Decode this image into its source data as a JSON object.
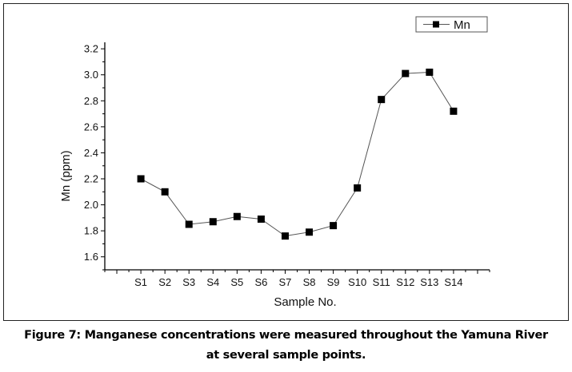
{
  "chart_data": {
    "type": "line",
    "title": "",
    "xlabel": "Sample No.",
    "ylabel": "Mn (ppm)",
    "categories": [
      "S1",
      "S2",
      "S3",
      "S4",
      "S5",
      "S6",
      "S7",
      "S8",
      "S9",
      "S10",
      "S11",
      "S12",
      "S13",
      "S14"
    ],
    "series": [
      {
        "name": "Mn",
        "values": [
          2.2,
          2.1,
          1.85,
          1.87,
          1.91,
          1.89,
          1.76,
          1.79,
          1.84,
          2.13,
          2.81,
          3.01,
          3.02,
          2.72
        ],
        "color": "#000000",
        "line_color": "#555555",
        "marker": "square"
      }
    ],
    "xlim": [
      -0.5,
      15.5
    ],
    "ylim": [
      1.5,
      3.25
    ],
    "yticks": [
      "1.6",
      "1.8",
      "2.0",
      "2.2",
      "2.4",
      "2.6",
      "2.8",
      "3.0",
      "3.2"
    ],
    "grid": false,
    "legend": "top-right"
  },
  "caption": {
    "line1": "Figure 7: Manganese concentrations were measured throughout the Yamuna River",
    "line2": "at several sample points."
  }
}
